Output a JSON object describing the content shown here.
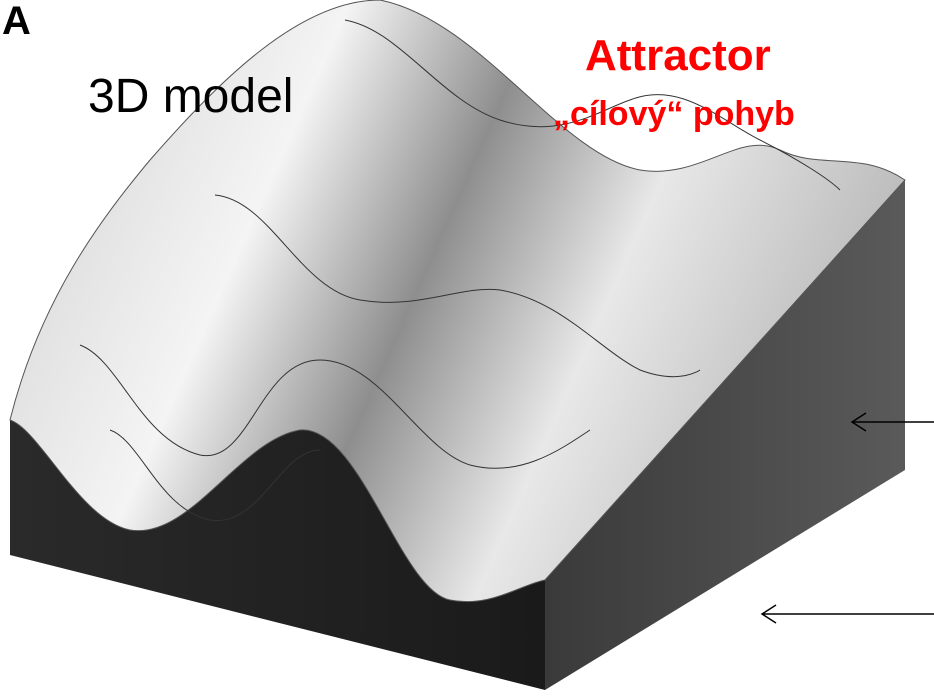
{
  "panel_label": "A",
  "title": "3D model",
  "annotation": {
    "title": "Attractor",
    "subtitle": "„cílový“ pohyb"
  }
}
